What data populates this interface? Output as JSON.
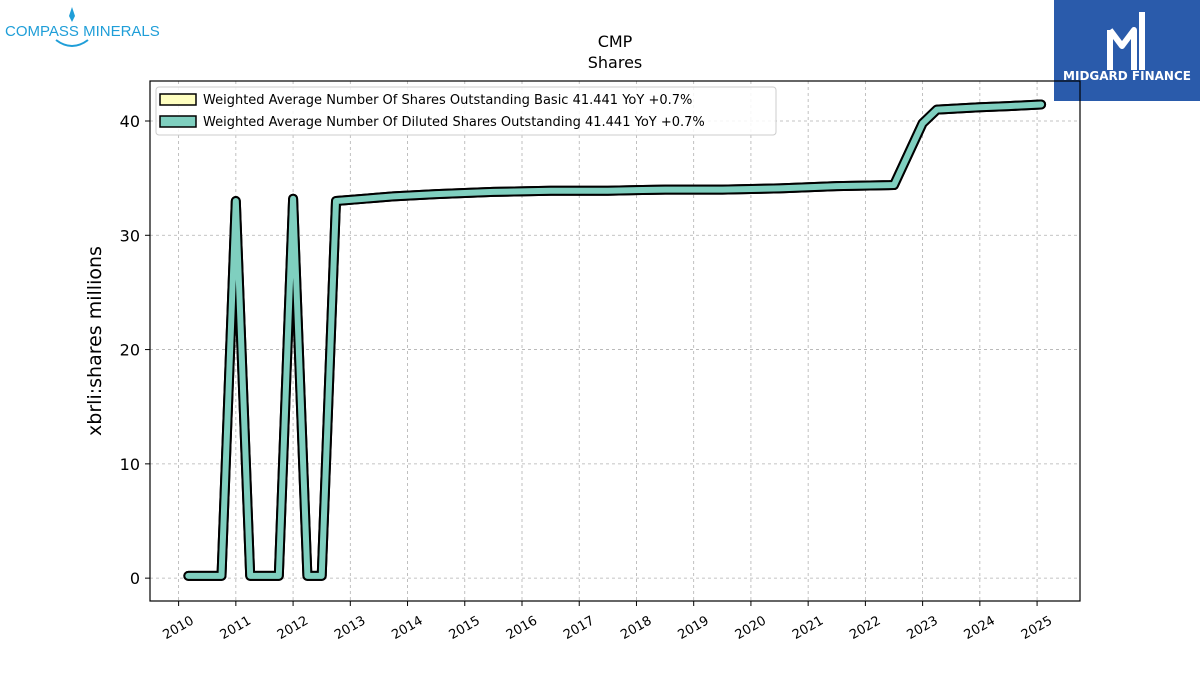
{
  "logos": {
    "left_text": "COMPASS MINERALS",
    "right_text": "MIDGARD FINANCE"
  },
  "colors": {
    "basic_fill": "#ffffc0",
    "diluted_fill": "#7fcfbf",
    "outline": "#000000",
    "grid": "#b0b0b0",
    "right_logo_bg": "#2a5bab",
    "left_logo": "#1f9ed8"
  },
  "chart_data": {
    "type": "line",
    "title": "CMP",
    "subtitle": "Shares",
    "xlabel": "",
    "ylabel": "xbrli:shares millions",
    "xlim": [
      2009.5,
      2025.75
    ],
    "ylim": [
      -2,
      43.5
    ],
    "grid": true,
    "legend_position": "top-left",
    "x_ticks": [
      2010,
      2011,
      2012,
      2013,
      2014,
      2015,
      2016,
      2017,
      2018,
      2019,
      2020,
      2021,
      2022,
      2023,
      2024,
      2025
    ],
    "x_tick_labels": [
      "2010",
      "2011",
      "2012",
      "2013",
      "2014",
      "2015",
      "2016",
      "2017",
      "2018",
      "2019",
      "2020",
      "2021",
      "2022",
      "2023",
      "2024",
      "2025"
    ],
    "y_ticks": [
      0,
      10,
      20,
      30,
      40
    ],
    "y_tick_labels": [
      "0",
      "10",
      "20",
      "30",
      "40"
    ],
    "series": [
      {
        "name": "Weighted Average Number Of Shares Outstanding Basic",
        "legend_label": "Weighted Average Number Of Shares Outstanding Basic  41.441 YoY +0.7%",
        "x": [
          2010.17,
          2010.42,
          2010.67,
          2010.75,
          2011.0,
          2011.25,
          2011.5,
          2011.75,
          2012.0,
          2012.25,
          2012.5,
          2012.75,
          2013.25,
          2013.75,
          2014.5,
          2015.5,
          2016.5,
          2017.5,
          2018.5,
          2019.5,
          2020.5,
          2021.5,
          2022.5,
          2023.0,
          2023.25,
          2024.0,
          2024.5,
          2025.07
        ],
        "y": [
          0.2,
          0.2,
          0.2,
          0.2,
          33.0,
          0.2,
          0.2,
          0.2,
          33.2,
          0.2,
          0.2,
          33.0,
          33.2,
          33.4,
          33.6,
          33.8,
          33.9,
          33.9,
          34.0,
          34.0,
          34.1,
          34.3,
          34.4,
          39.8,
          41.0,
          41.2,
          41.3,
          41.441
        ]
      },
      {
        "name": "Weighted Average Number Of Diluted Shares Outstanding",
        "legend_label": "Weighted Average Number Of Diluted Shares Outstanding  41.441 YoY +0.7%",
        "x": [
          2010.17,
          2010.42,
          2010.67,
          2010.75,
          2011.0,
          2011.25,
          2011.5,
          2011.75,
          2012.0,
          2012.25,
          2012.5,
          2012.75,
          2013.25,
          2013.75,
          2014.5,
          2015.5,
          2016.5,
          2017.5,
          2018.5,
          2019.5,
          2020.5,
          2021.5,
          2022.5,
          2023.0,
          2023.25,
          2024.0,
          2024.5,
          2025.07
        ],
        "y": [
          0.2,
          0.2,
          0.2,
          0.2,
          33.0,
          0.2,
          0.2,
          0.2,
          33.2,
          0.2,
          0.2,
          33.0,
          33.2,
          33.4,
          33.6,
          33.8,
          33.9,
          33.9,
          34.0,
          34.0,
          34.1,
          34.3,
          34.4,
          39.8,
          41.0,
          41.2,
          41.3,
          41.441
        ]
      }
    ]
  }
}
